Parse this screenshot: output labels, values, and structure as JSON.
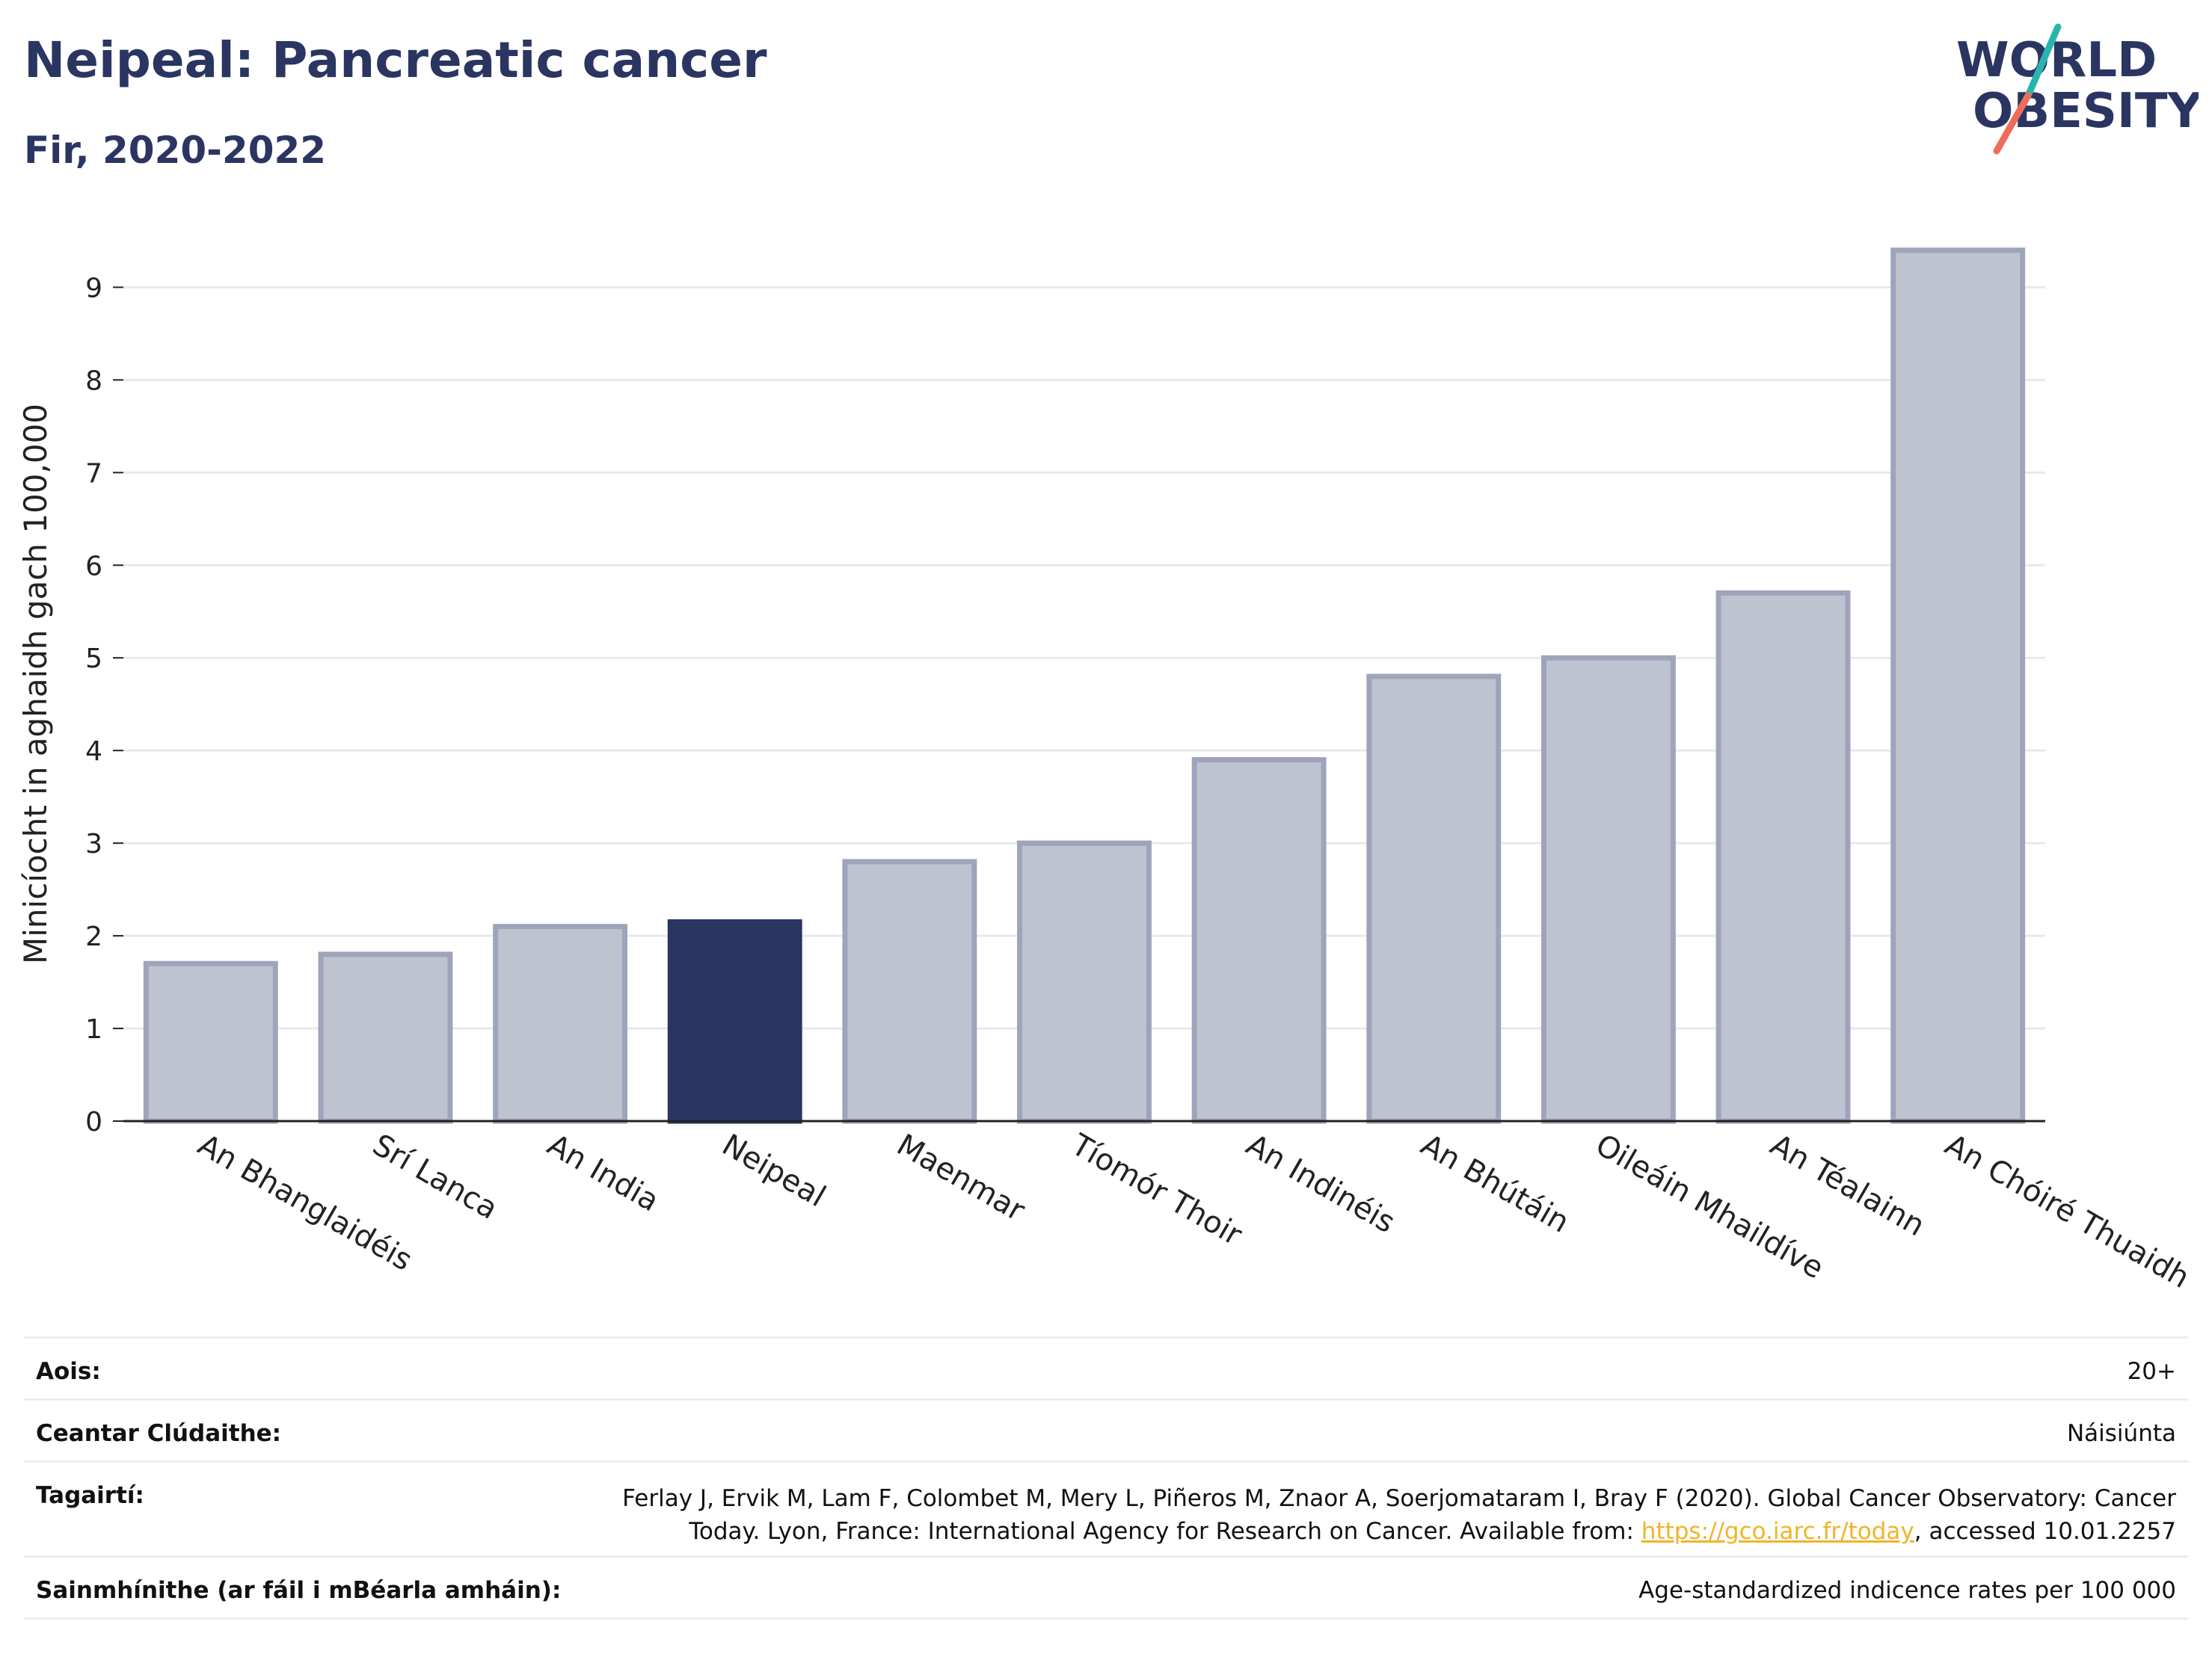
{
  "header": {
    "title": "Neipeal: Pancreatic cancer",
    "subtitle": "Fir, 2020-2022"
  },
  "logo": {
    "line1": "WORLD",
    "line2": "OBESITY",
    "colors": {
      "text": "#2b3561",
      "slash_top": "#2ab4b0",
      "slash_bottom": "#ee6c5a"
    }
  },
  "colors": {
    "highlight": "#2b3561",
    "bar_fill": "#bfc3d0",
    "bar_stroke": "#9ea4bb",
    "grid": "#e8e9ee",
    "axis": "#222222"
  },
  "chart_data": {
    "type": "bar",
    "title": "Neipeal: Pancreatic cancer",
    "subtitle": "Fir, 2020-2022",
    "xlabel": "",
    "ylabel": "Minicíocht in aghaidh gach 100,000",
    "ylim": [
      0,
      9.6
    ],
    "yticks": [
      0,
      1,
      2,
      3,
      4,
      5,
      6,
      7,
      8,
      9
    ],
    "grid": true,
    "highlighted_category": "Neipeal",
    "categories": [
      "An Bhanglaidéis",
      "Srí Lanca",
      "An India",
      "Neipeal",
      "Maenmar",
      "Tíomór Thoir",
      "An Indinéis",
      "An Bhútáin",
      "Oileáin Mhaildíve",
      "An Téalainn",
      "An Chóiré Thuaidh"
    ],
    "values": [
      1.7,
      1.8,
      2.1,
      2.15,
      2.8,
      3.0,
      3.9,
      4.8,
      5.0,
      5.7,
      9.4
    ]
  },
  "info": {
    "age_label": "Aois:",
    "age_value": "20+",
    "coverage_label": "Ceantar Clúdaithe:",
    "coverage_value": "Náisiúnta",
    "references_label": "Tagairtí:",
    "references_line1": "Ferlay J, Ervik M, Lam F, Colombet M, Mery L, Piñeros M, Znaor A, Soerjomataram I, Bray F (2020). Global Cancer Observatory: Cancer",
    "references_line2_pre": "Today. Lyon, France: International Agency for Research on Cancer. Available from: ",
    "references_link": "https://gco.iarc.fr/today",
    "references_line2_post": ", accessed 10.01.2257",
    "definitions_label": "Sainmhínithe (ar fáil i mBéarla amháin):",
    "definitions_value": "Age-standardized indicence rates per 100 000"
  }
}
